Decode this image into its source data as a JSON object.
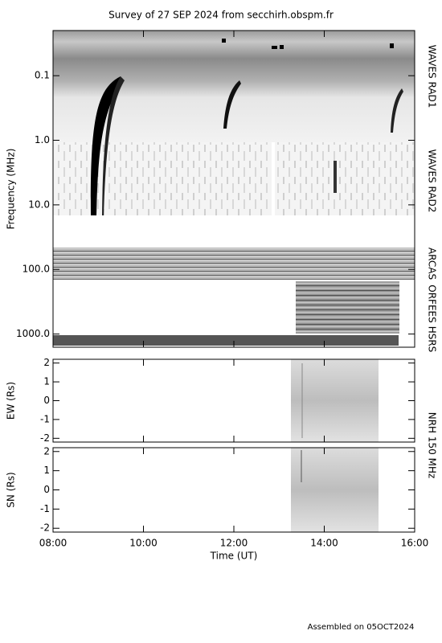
{
  "chart_data": [
    {
      "type": "spectrogram",
      "title": "Survey of 27 SEP 2024 from secchirh.obspm.fr",
      "ylabel": "Frequency (MHz)",
      "log_scale": true,
      "y_inverted": true,
      "ylim": [
        0.02,
        1600
      ],
      "yticks": [
        0.1,
        {
          "value": 1,
          "label": "1.0"
        },
        {
          "value": 10,
          "label": "10.0"
        },
        {
          "value": 100,
          "label": "100.0"
        },
        {
          "value": 1000,
          "label": "1000.0"
        }
      ],
      "channel_labels": [
        "WAVES RAD1",
        "WAVES RAD2",
        "ARCAS",
        "ORFEES",
        "HSRS"
      ]
    },
    {
      "type": "image",
      "ylabel": "EW (Rs)",
      "ylim": [
        -2.2,
        2.2
      ],
      "yticks": [
        -2,
        -1,
        0,
        1,
        2
      ]
    },
    {
      "type": "image",
      "ylabel": "SN (Rs)",
      "ylim": [
        -2.2,
        2.2
      ],
      "yticks": [
        -2,
        -1,
        0,
        1,
        2
      ],
      "channel_label": "NRH 150 MHz",
      "xlabel": "Time (UT)",
      "xlim": [
        8,
        16
      ],
      "xticks": [
        {
          "value": 8,
          "label": "08:00"
        },
        {
          "value": 10,
          "label": "10:00"
        },
        {
          "value": 12,
          "label": "12:00"
        },
        {
          "value": 14,
          "label": "14:00"
        },
        {
          "value": 16,
          "label": "16:00"
        }
      ]
    }
  ],
  "footer": "Assembled on 05OCT2024"
}
